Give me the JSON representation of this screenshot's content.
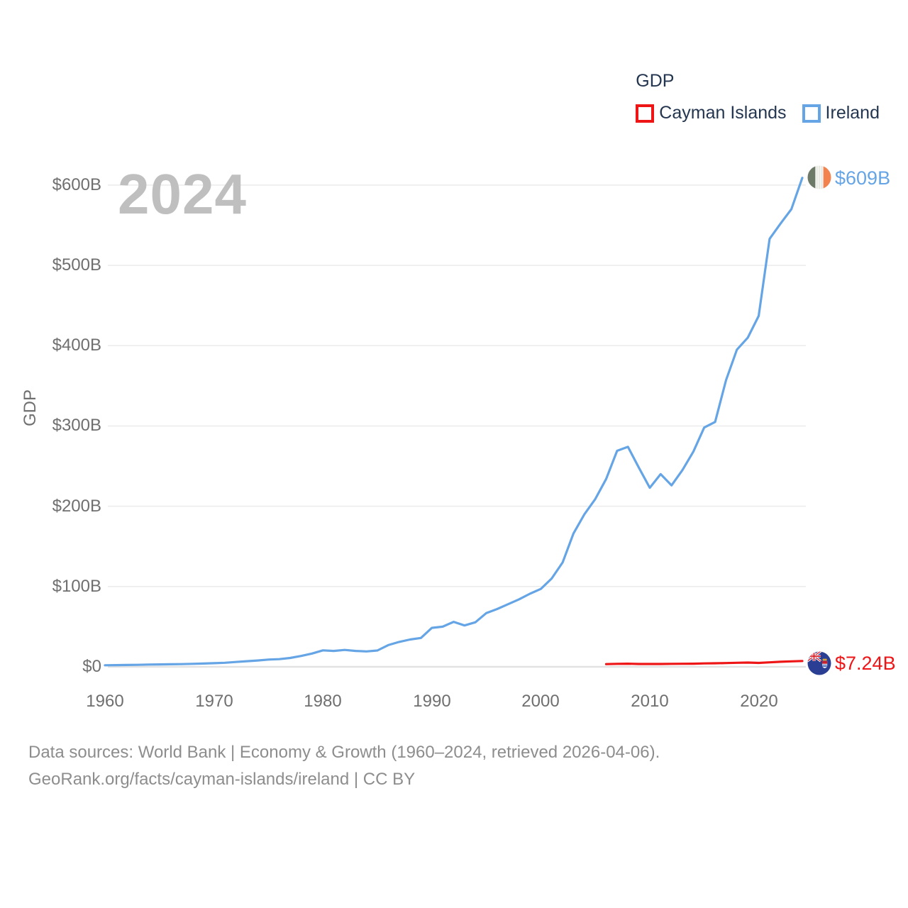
{
  "chart_data": {
    "type": "line",
    "title": "GDP",
    "watermark": "2024",
    "ylabel": "GDP",
    "x_start": 1960,
    "x_end": 2024,
    "ylim": [
      0,
      600
    ],
    "grid": "horizontal",
    "legend_position": "top-right",
    "y_ticks": [
      {
        "value": 600,
        "label": "$600B"
      },
      {
        "value": 500,
        "label": "$500B"
      },
      {
        "value": 400,
        "label": "$400B"
      },
      {
        "value": 300,
        "label": "$300B"
      },
      {
        "value": 200,
        "label": "$200B"
      },
      {
        "value": 100,
        "label": "$100B"
      },
      {
        "value": 0,
        "label": "$0"
      }
    ],
    "x_ticks": [
      {
        "year": 1960,
        "label": "1960"
      },
      {
        "year": 1970,
        "label": "1970"
      },
      {
        "year": 1980,
        "label": "1980"
      },
      {
        "year": 1990,
        "label": "1990"
      },
      {
        "year": 2000,
        "label": "2000"
      },
      {
        "year": 2010,
        "label": "2010"
      },
      {
        "year": 2020,
        "label": "2020"
      }
    ],
    "series": [
      {
        "name": "Cayman Islands",
        "color": "#ee1517",
        "flag_icon": "cayman-islands-flag-icon",
        "start_year": 2006,
        "end_year": 2024,
        "end_label": "$7.24B",
        "values": [
          3.4,
          3.7,
          3.9,
          3.5,
          3.5,
          3.5,
          3.7,
          3.8,
          3.9,
          4.2,
          4.4,
          4.7,
          5.0,
          5.3,
          4.9,
          5.6,
          6.3,
          6.8,
          7.24
        ]
      },
      {
        "name": "Ireland",
        "color": "#66a5e5",
        "flag_icon": "ireland-flag-icon",
        "start_year": 1960,
        "end_year": 2024,
        "end_label": "$609B",
        "values": [
          1.9,
          2.1,
          2.3,
          2.5,
          2.8,
          3.0,
          3.2,
          3.4,
          3.7,
          4.1,
          4.5,
          5.0,
          6.0,
          7.0,
          7.9,
          9.0,
          9.5,
          11.0,
          13.5,
          16.5,
          20.5,
          19.8,
          21.0,
          19.8,
          19.2,
          20.3,
          27.0,
          31.0,
          34.0,
          36.0,
          48.5,
          50.0,
          56.0,
          51.5,
          55.5,
          67.0,
          72.0,
          78.0,
          84.0,
          91.0,
          97.0,
          110.0,
          130.0,
          166.0,
          190.0,
          209.0,
          234.0,
          269.0,
          274.0,
          248.0,
          223.0,
          240.0,
          226.0,
          245.0,
          268.0,
          298.0,
          305.0,
          357.0,
          395.0,
          410.0,
          437.0,
          533.0,
          552.0,
          570.0,
          609.0
        ]
      }
    ]
  },
  "colors": {
    "cayman_red": "#ee1517",
    "ireland_blue": "#66a5e5",
    "gridline": "#ebebeb",
    "baseline": "#e2e2e2",
    "axis_text": "#6f6f6f",
    "legend_text": "#24364f",
    "watermark": "#bfbfbf",
    "footer_text": "#8d8d8d"
  },
  "footer": {
    "line1": "Data sources: World Bank | Economy & Growth (1960–2024, retrieved 2026-04-06).",
    "line2": "GeoRank.org/facts/cayman-islands/ireland | CC BY"
  }
}
